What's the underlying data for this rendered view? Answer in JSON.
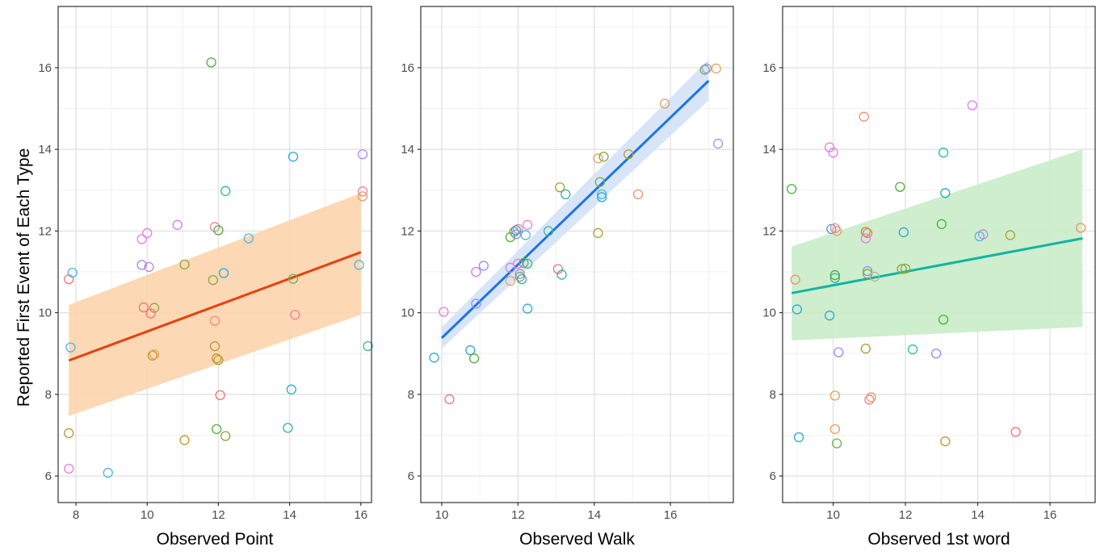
{
  "y_axis_title": "Reported First Event of Each Type",
  "chart_data": [
    {
      "type": "scatter",
      "xlabel": "Observed Point",
      "xlim": [
        7.5,
        16.3
      ],
      "ylim": [
        5.35,
        17.5
      ],
      "x_ticks": [
        8,
        10,
        12,
        14,
        16
      ],
      "y_ticks": [
        6,
        8,
        10,
        12,
        14,
        16
      ],
      "grid": true,
      "fit": {
        "x": [
          7.8,
          16.0
        ],
        "y": [
          8.83,
          11.48
        ],
        "band_lower": [
          7.47,
          9.95
        ],
        "band_upper": [
          10.19,
          12.93
        ],
        "color": "#e8410e",
        "band_color": "#fdd4ad"
      },
      "points": [
        {
          "x": 7.8,
          "y": 10.82,
          "color": "#f4717c"
        },
        {
          "x": 7.9,
          "y": 10.98,
          "color": "#47b7e6"
        },
        {
          "x": 7.85,
          "y": 9.15,
          "color": "#47b7e6"
        },
        {
          "x": 7.8,
          "y": 7.05,
          "color": "#b59b2f"
        },
        {
          "x": 7.8,
          "y": 6.18,
          "color": "#e67de6"
        },
        {
          "x": 8.9,
          "y": 6.08,
          "color": "#47b7e6"
        },
        {
          "x": 9.85,
          "y": 11.8,
          "color": "#e67de6"
        },
        {
          "x": 10.0,
          "y": 11.95,
          "color": "#e67de6"
        },
        {
          "x": 9.85,
          "y": 11.17,
          "color": "#8a91f5"
        },
        {
          "x": 10.05,
          "y": 11.12,
          "color": "#c97ee8"
        },
        {
          "x": 9.9,
          "y": 10.13,
          "color": "#f4717c"
        },
        {
          "x": 10.2,
          "y": 10.12,
          "color": "#8aa73a"
        },
        {
          "x": 10.1,
          "y": 9.98,
          "color": "#f4717c"
        },
        {
          "x": 10.15,
          "y": 8.95,
          "color": "#b59b2f"
        },
        {
          "x": 10.2,
          "y": 8.98,
          "color": "#e6a05a"
        },
        {
          "x": 10.85,
          "y": 12.15,
          "color": "#c97ee8"
        },
        {
          "x": 11.05,
          "y": 11.18,
          "color": "#8aa73a"
        },
        {
          "x": 11.05,
          "y": 6.88,
          "color": "#b59b2f"
        },
        {
          "x": 11.8,
          "y": 16.13,
          "color": "#4db03a"
        },
        {
          "x": 11.9,
          "y": 12.1,
          "color": "#f07ea5"
        },
        {
          "x": 12.0,
          "y": 12.02,
          "color": "#4db03a"
        },
        {
          "x": 11.85,
          "y": 10.8,
          "color": "#8aa73a"
        },
        {
          "x": 11.9,
          "y": 9.8,
          "color": "#f0916e"
        },
        {
          "x": 11.9,
          "y": 9.18,
          "color": "#b59b2f"
        },
        {
          "x": 11.95,
          "y": 8.88,
          "color": "#b59b2f"
        },
        {
          "x": 12.0,
          "y": 8.84,
          "color": "#b59b2f"
        },
        {
          "x": 12.05,
          "y": 7.98,
          "color": "#f4717c"
        },
        {
          "x": 11.95,
          "y": 7.15,
          "color": "#4db03a"
        },
        {
          "x": 12.2,
          "y": 6.98,
          "color": "#8aa73a"
        },
        {
          "x": 12.2,
          "y": 12.98,
          "color": "#2fb89a"
        },
        {
          "x": 12.15,
          "y": 10.97,
          "color": "#2aa8d8"
        },
        {
          "x": 12.85,
          "y": 11.82,
          "color": "#47b7e6"
        },
        {
          "x": 14.1,
          "y": 13.82,
          "color": "#2aa8d8"
        },
        {
          "x": 14.1,
          "y": 10.83,
          "color": "#6fb04c"
        },
        {
          "x": 14.15,
          "y": 9.95,
          "color": "#f07ea5"
        },
        {
          "x": 14.05,
          "y": 8.12,
          "color": "#2aa8d8"
        },
        {
          "x": 13.95,
          "y": 7.18,
          "color": "#2fb89a"
        },
        {
          "x": 16.05,
          "y": 13.88,
          "color": "#a88ef0"
        },
        {
          "x": 16.05,
          "y": 12.97,
          "color": "#f07ea5"
        },
        {
          "x": 16.05,
          "y": 12.85,
          "color": "#e6a05a"
        },
        {
          "x": 15.95,
          "y": 11.17,
          "color": "#47b7e6"
        },
        {
          "x": 16.2,
          "y": 9.18,
          "color": "#2fb89a"
        }
      ]
    },
    {
      "type": "scatter",
      "xlabel": "Observed Walk",
      "xlim": [
        9.45,
        17.65
      ],
      "ylim": [
        5.35,
        17.5
      ],
      "x_ticks": [
        10,
        12,
        14,
        16
      ],
      "y_ticks": [
        6,
        8,
        10,
        12,
        14,
        16
      ],
      "grid": true,
      "fit": {
        "x": [
          10.0,
          17.0
        ],
        "y": [
          9.38,
          15.68
        ],
        "band_lower": [
          9.12,
          15.2
        ],
        "band_upper": [
          9.65,
          16.2
        ],
        "color": "#1e73e8",
        "band_color": "#d4e2f8"
      },
      "points": [
        {
          "x": 9.8,
          "y": 8.9,
          "color": "#2aa8d8"
        },
        {
          "x": 10.05,
          "y": 10.02,
          "color": "#e67de6"
        },
        {
          "x": 10.2,
          "y": 7.88,
          "color": "#f4717c"
        },
        {
          "x": 10.75,
          "y": 9.08,
          "color": "#2aa8d8"
        },
        {
          "x": 10.85,
          "y": 8.88,
          "color": "#4db03a"
        },
        {
          "x": 10.9,
          "y": 10.22,
          "color": "#8a91f5"
        },
        {
          "x": 10.9,
          "y": 11.0,
          "color": "#c97ee8"
        },
        {
          "x": 11.1,
          "y": 11.15,
          "color": "#8a91f5"
        },
        {
          "x": 11.8,
          "y": 11.85,
          "color": "#4db03a"
        },
        {
          "x": 11.9,
          "y": 11.98,
          "color": "#6fb04c"
        },
        {
          "x": 12.0,
          "y": 12.05,
          "color": "#f07ea5"
        },
        {
          "x": 11.95,
          "y": 12.02,
          "color": "#2aa8d8"
        },
        {
          "x": 11.95,
          "y": 11.92,
          "color": "#8a91f5"
        },
        {
          "x": 12.2,
          "y": 11.9,
          "color": "#47b7e6"
        },
        {
          "x": 12.25,
          "y": 12.15,
          "color": "#e67de6"
        },
        {
          "x": 11.8,
          "y": 10.78,
          "color": "#e6a05a"
        },
        {
          "x": 11.8,
          "y": 11.1,
          "color": "#c97ee8"
        },
        {
          "x": 12.0,
          "y": 11.2,
          "color": "#e67de6"
        },
        {
          "x": 12.15,
          "y": 11.22,
          "color": "#8aa73a"
        },
        {
          "x": 12.25,
          "y": 11.2,
          "color": "#2fb89a"
        },
        {
          "x": 12.05,
          "y": 10.95,
          "color": "#a88ef0"
        },
        {
          "x": 12.05,
          "y": 10.88,
          "color": "#8aa73a"
        },
        {
          "x": 12.1,
          "y": 10.82,
          "color": "#2aa8d8"
        },
        {
          "x": 12.25,
          "y": 10.1,
          "color": "#2aa8d8"
        },
        {
          "x": 12.8,
          "y": 12.0,
          "color": "#2fb89a"
        },
        {
          "x": 13.05,
          "y": 11.07,
          "color": "#f4717c"
        },
        {
          "x": 13.15,
          "y": 10.93,
          "color": "#2fb89a"
        },
        {
          "x": 13.1,
          "y": 13.07,
          "color": "#b59b2f"
        },
        {
          "x": 13.25,
          "y": 12.9,
          "color": "#2fb89a"
        },
        {
          "x": 14.1,
          "y": 11.95,
          "color": "#b59b2f"
        },
        {
          "x": 14.1,
          "y": 13.78,
          "color": "#e6a05a"
        },
        {
          "x": 14.25,
          "y": 13.82,
          "color": "#8aa73a"
        },
        {
          "x": 14.15,
          "y": 13.2,
          "color": "#6fb04c"
        },
        {
          "x": 14.2,
          "y": 12.9,
          "color": "#47b7e6"
        },
        {
          "x": 14.2,
          "y": 12.83,
          "color": "#2aa8d8"
        },
        {
          "x": 14.9,
          "y": 13.88,
          "color": "#b59b2f"
        },
        {
          "x": 15.15,
          "y": 12.9,
          "color": "#f0916e"
        },
        {
          "x": 15.85,
          "y": 15.12,
          "color": "#e6a05a"
        },
        {
          "x": 16.9,
          "y": 15.95,
          "color": "#6fb04c"
        },
        {
          "x": 16.95,
          "y": 15.98,
          "color": "#a88ef0"
        },
        {
          "x": 17.2,
          "y": 15.98,
          "color": "#e6a05a"
        },
        {
          "x": 17.25,
          "y": 14.14,
          "color": "#a88ef0"
        }
      ]
    },
    {
      "type": "scatter",
      "xlabel": "Observed 1st word",
      "xlim": [
        8.6,
        17.25
      ],
      "ylim": [
        5.35,
        17.5
      ],
      "x_ticks": [
        10,
        12,
        14,
        16
      ],
      "y_ticks": [
        6,
        8,
        10,
        12,
        14,
        16
      ],
      "grid": true,
      "fit": {
        "x": [
          8.85,
          16.9
        ],
        "y": [
          10.48,
          11.82
        ],
        "band_lower": [
          9.32,
          9.65
        ],
        "band_upper": [
          11.62,
          14.0
        ],
        "color": "#12b4a0",
        "band_color": "#c9ecc9"
      },
      "points": [
        {
          "x": 8.85,
          "y": 13.03,
          "color": "#4db03a"
        },
        {
          "x": 8.95,
          "y": 10.81,
          "color": "#f0916e"
        },
        {
          "x": 9.0,
          "y": 10.08,
          "color": "#2aa8d8"
        },
        {
          "x": 9.05,
          "y": 6.95,
          "color": "#2aa8d8"
        },
        {
          "x": 9.9,
          "y": 14.05,
          "color": "#e67de6"
        },
        {
          "x": 10.0,
          "y": 13.92,
          "color": "#e67de6"
        },
        {
          "x": 9.95,
          "y": 12.05,
          "color": "#2aa8d8"
        },
        {
          "x": 10.05,
          "y": 12.07,
          "color": "#f07ea5"
        },
        {
          "x": 10.1,
          "y": 12.0,
          "color": "#e6a05a"
        },
        {
          "x": 9.9,
          "y": 9.93,
          "color": "#2aa8d8"
        },
        {
          "x": 10.05,
          "y": 10.92,
          "color": "#4db03a"
        },
        {
          "x": 10.05,
          "y": 10.85,
          "color": "#2fb89a"
        },
        {
          "x": 10.15,
          "y": 9.03,
          "color": "#8a91f5"
        },
        {
          "x": 10.05,
          "y": 7.97,
          "color": "#e6a05a"
        },
        {
          "x": 10.05,
          "y": 7.15,
          "color": "#e6a05a"
        },
        {
          "x": 10.1,
          "y": 6.8,
          "color": "#6fb04c"
        },
        {
          "x": 10.85,
          "y": 14.8,
          "color": "#f0916e"
        },
        {
          "x": 10.9,
          "y": 11.98,
          "color": "#b59b2f"
        },
        {
          "x": 10.95,
          "y": 11.95,
          "color": "#f4717c"
        },
        {
          "x": 10.9,
          "y": 11.82,
          "color": "#e67de6"
        },
        {
          "x": 10.95,
          "y": 11.02,
          "color": "#8a91f5"
        },
        {
          "x": 10.95,
          "y": 10.95,
          "color": "#8aa73a"
        },
        {
          "x": 11.15,
          "y": 10.88,
          "color": "#b5b5a0"
        },
        {
          "x": 10.9,
          "y": 9.12,
          "color": "#b59b2f"
        },
        {
          "x": 11.0,
          "y": 7.87,
          "color": "#f07ea5"
        },
        {
          "x": 11.05,
          "y": 7.93,
          "color": "#e6a05a"
        },
        {
          "x": 11.85,
          "y": 13.08,
          "color": "#4db03a"
        },
        {
          "x": 11.9,
          "y": 11.07,
          "color": "#8aa73a"
        },
        {
          "x": 12.0,
          "y": 11.08,
          "color": "#8aa73a"
        },
        {
          "x": 11.95,
          "y": 11.97,
          "color": "#2aa8d8"
        },
        {
          "x": 12.2,
          "y": 9.1,
          "color": "#2fb89a"
        },
        {
          "x": 13.0,
          "y": 12.17,
          "color": "#4db03a"
        },
        {
          "x": 13.05,
          "y": 13.92,
          "color": "#2fb89a"
        },
        {
          "x": 13.1,
          "y": 12.93,
          "color": "#2aa8d8"
        },
        {
          "x": 13.05,
          "y": 9.83,
          "color": "#4db03a"
        },
        {
          "x": 12.85,
          "y": 9.0,
          "color": "#8a91f5"
        },
        {
          "x": 13.1,
          "y": 6.85,
          "color": "#b59b2f"
        },
        {
          "x": 13.85,
          "y": 15.08,
          "color": "#e67de6"
        },
        {
          "x": 14.05,
          "y": 11.87,
          "color": "#47b7e6"
        },
        {
          "x": 14.15,
          "y": 11.92,
          "color": "#c97ee8"
        },
        {
          "x": 14.9,
          "y": 11.9,
          "color": "#b59b2f"
        },
        {
          "x": 15.05,
          "y": 7.08,
          "color": "#f4717c"
        },
        {
          "x": 16.85,
          "y": 12.08,
          "color": "#f0916e"
        }
      ]
    }
  ]
}
